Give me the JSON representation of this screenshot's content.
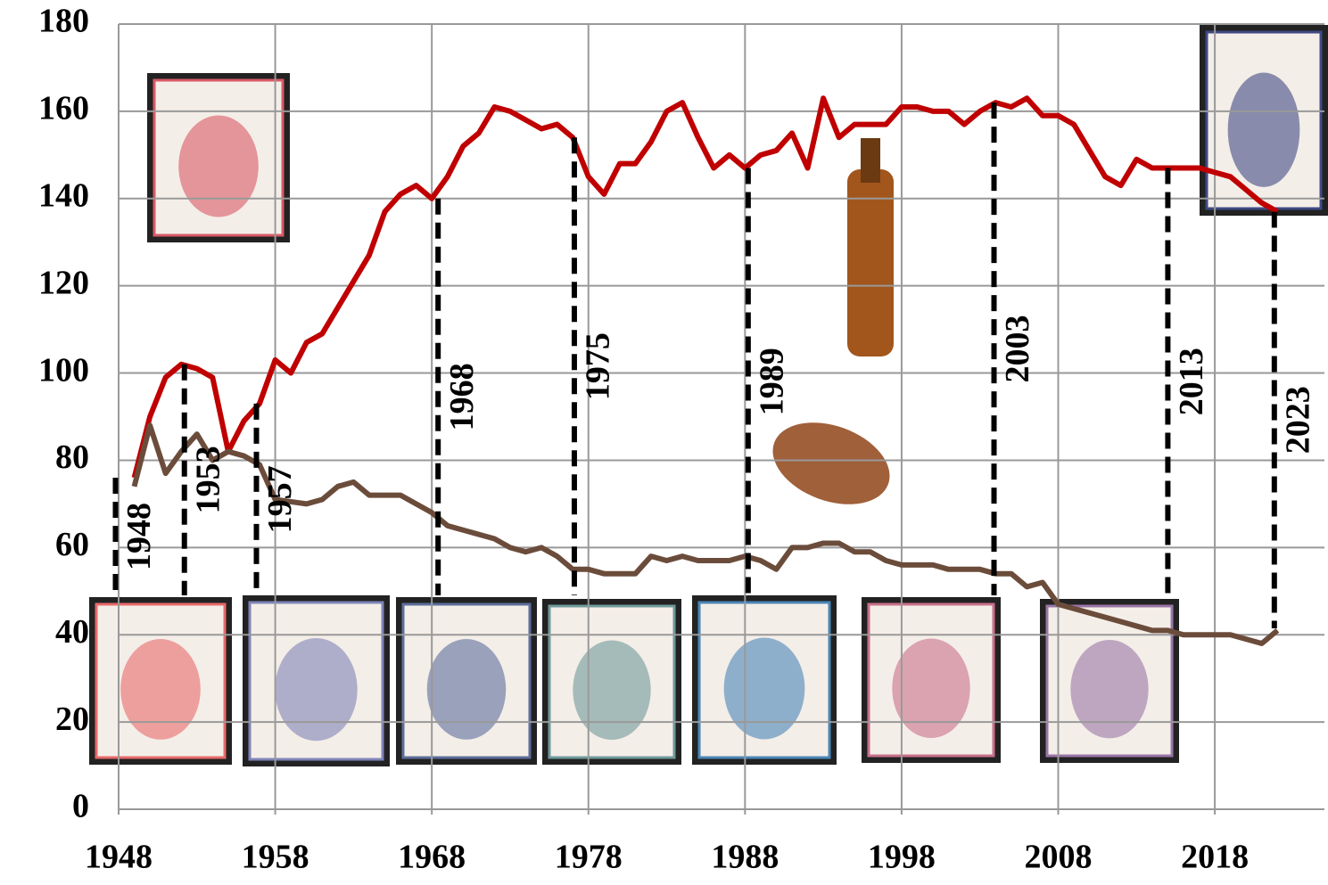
{
  "chart_data": {
    "type": "line",
    "x": [
      1949,
      1950,
      1951,
      1952,
      1953,
      1954,
      1955,
      1956,
      1957,
      1958,
      1959,
      1960,
      1961,
      1962,
      1963,
      1964,
      1965,
      1966,
      1967,
      1968,
      1969,
      1970,
      1971,
      1972,
      1973,
      1974,
      1975,
      1976,
      1977,
      1978,
      1979,
      1980,
      1981,
      1982,
      1983,
      1984,
      1985,
      1986,
      1987,
      1988,
      1989,
      1990,
      1991,
      1992,
      1993,
      1994,
      1995,
      1996,
      1997,
      1998,
      1999,
      2000,
      2001,
      2002,
      2003,
      2004,
      2005,
      2006,
      2007,
      2008,
      2009,
      2010,
      2011,
      2012,
      2013,
      2014,
      2015,
      2016,
      2017,
      2018,
      2019,
      2020,
      2021,
      2022
    ],
    "series": [
      {
        "color": "#c00000",
        "values": [
          76,
          90,
          99,
          102,
          101,
          99,
          82,
          89,
          93,
          103,
          100,
          107,
          109,
          115,
          121,
          127,
          137,
          141,
          143,
          140,
          145,
          152,
          155,
          161,
          160,
          158,
          156,
          157,
          154,
          145,
          141,
          148,
          148,
          153,
          160,
          162,
          154,
          147,
          150,
          147,
          150,
          151,
          155,
          147,
          163,
          154,
          157,
          157,
          157,
          161,
          161,
          160,
          160,
          157,
          160,
          162,
          161,
          163,
          159,
          159,
          157,
          151,
          145,
          143,
          149,
          147,
          147,
          147,
          147,
          146,
          145,
          142,
          139,
          137
        ]
      },
      {
        "color": "#6b4c3b",
        "values": [
          74,
          88,
          77,
          82,
          86,
          80,
          82,
          81,
          79,
          71,
          70.5,
          70,
          71,
          74,
          75,
          72,
          72,
          72,
          70,
          68,
          65,
          64,
          63,
          62,
          60,
          59,
          60,
          58,
          55,
          55,
          54,
          54,
          54,
          58,
          57,
          58,
          57,
          57,
          57,
          58,
          57,
          55,
          60,
          60,
          61,
          61,
          59,
          59,
          57,
          56,
          56,
          56,
          55,
          55,
          55,
          54,
          54,
          51,
          52,
          47,
          46,
          45,
          44,
          43,
          42,
          41,
          41,
          40,
          40,
          40,
          40,
          39,
          38,
          41
        ]
      }
    ],
    "markers": [
      {
        "x": 1947.8,
        "label": "1948"
      },
      {
        "x": 1952.2,
        "label": "1953"
      },
      {
        "x": 1956.8,
        "label": "1957"
      },
      {
        "x": 1968.4,
        "label": "1968"
      },
      {
        "x": 1977.1,
        "label": "1975"
      },
      {
        "x": 1988.2,
        "label": "1989"
      },
      {
        "x": 2003.9,
        "label": "2003"
      },
      {
        "x": 2015,
        "label": "2013"
      },
      {
        "x": 2021.8,
        "label": "2023"
      }
    ],
    "xlim": [
      1948,
      2025
    ],
    "xticks": [
      1948,
      1958,
      1968,
      1978,
      1988,
      1998,
      2008,
      2018
    ],
    "ylim": [
      0,
      180
    ],
    "yticks": [
      0,
      20,
      40,
      60,
      80,
      100,
      120,
      140,
      160,
      180
    ],
    "grid": true
  }
}
